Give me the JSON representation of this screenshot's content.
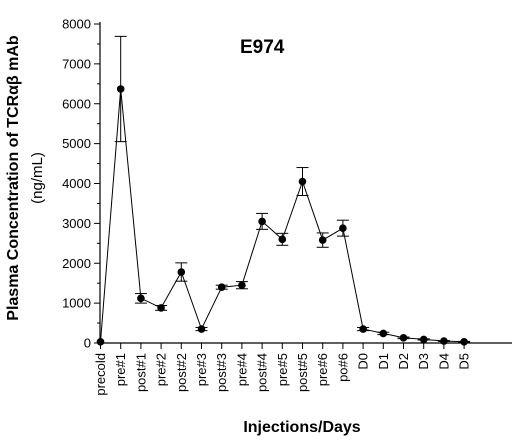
{
  "chart_data": {
    "type": "line",
    "title": "E974",
    "xlabel": "Injections/Days",
    "ylabel": "Plasma Concentration of TCRαβ mAb",
    "ylabel_units": "(ng/mL)",
    "ylim": [
      0,
      8000
    ],
    "yticks": [
      0,
      1000,
      2000,
      3000,
      4000,
      5000,
      6000,
      7000,
      8000
    ],
    "categories": [
      "precold",
      "pre#1",
      "post#1",
      "pre#2",
      "post#2",
      "pre#3",
      "post#3",
      "pre#4",
      "post#4",
      "pre#5",
      "post#5",
      "pre#6",
      "po#6",
      "D0",
      "D1",
      "D2",
      "D3",
      "D4",
      "D5"
    ],
    "series": [
      {
        "values": [
          30,
          6370,
          1120,
          880,
          1780,
          350,
          1400,
          1450,
          3050,
          2600,
          4050,
          2580,
          2880,
          350,
          240,
          130,
          90,
          50,
          30
        ],
        "error": [
          0,
          1320,
          120,
          60,
          230,
          40,
          50,
          90,
          200,
          150,
          350,
          180,
          200,
          40,
          30,
          20,
          15,
          10,
          10
        ]
      }
    ],
    "grid": false,
    "legend": "none"
  }
}
